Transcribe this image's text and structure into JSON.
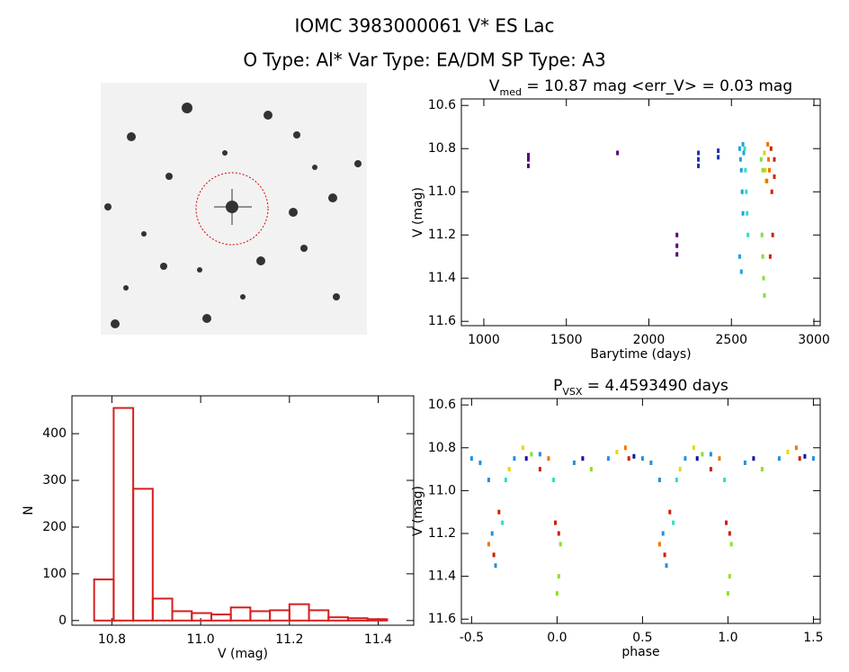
{
  "title": "IOMC 3983000061   V* ES Lac",
  "subtitle": "O Type: Al*  Var Type: EA/DM  SP Type: A3",
  "chart_data": [
    {
      "type": "scatter",
      "title": {
        "main": "V",
        "sub": "med",
        "rest": " = 10.87 mag <err_V> = 0.03 mag"
      },
      "x_label": "Barytime (days)",
      "y_label": "V (mag)",
      "xlim": [
        864,
        3038
      ],
      "ylim": [
        11.62,
        10.57
      ],
      "xticks": [
        1000,
        1500,
        2000,
        2500,
        3000
      ],
      "yticks": [
        10.6,
        10.8,
        {
          "value": 11,
          "label": "11.0"
        },
        11.2,
        11.4,
        11.6
      ],
      "series": [
        {
          "color": "#5a007a",
          "x": [
            1270,
            1270,
            1270,
            1810,
            2170,
            2170,
            2170
          ],
          "values": [
            10.83,
            10.85,
            10.88,
            10.82,
            11.2,
            11.25,
            11.29
          ]
        },
        {
          "color": "#2030b0",
          "x": [
            2300,
            2300,
            2300,
            2420,
            2420
          ],
          "values": [
            10.82,
            10.85,
            10.88,
            10.81,
            10.84
          ]
        },
        {
          "color": "#20a0e0",
          "x": [
            2550,
            2555,
            2560,
            2565,
            2570,
            2550,
            2560,
            2570,
            2575
          ],
          "values": [
            10.8,
            10.85,
            10.9,
            11.0,
            11.1,
            11.3,
            11.37,
            10.78,
            10.82
          ]
        },
        {
          "color": "#30e0c0",
          "x": [
            2580,
            2585,
            2590,
            2595,
            2600
          ],
          "values": [
            10.8,
            10.9,
            11.0,
            11.1,
            11.2
          ]
        },
        {
          "color": "#80e040",
          "x": [
            2680,
            2685,
            2690,
            2695,
            2700,
            2690
          ],
          "values": [
            10.85,
            11.2,
            11.3,
            11.4,
            11.48,
            10.9
          ]
        },
        {
          "color": "#e0d000",
          "x": [
            2700,
            2705,
            2710
          ],
          "values": [
            10.82,
            10.9,
            10.95
          ]
        },
        {
          "color": "#f07000",
          "x": [
            2720,
            2725,
            2730,
            2715
          ],
          "values": [
            10.78,
            10.85,
            10.9,
            10.95
          ]
        },
        {
          "color": "#d02000",
          "x": [
            2740,
            2745,
            2750,
            2735,
            2760,
            2760
          ],
          "values": [
            10.8,
            11.0,
            11.2,
            11.3,
            10.85,
            10.93
          ]
        }
      ]
    },
    {
      "type": "histogram",
      "x_label": "V (mag)",
      "y_label": "N",
      "xlim": [
        10.71,
        11.48
      ],
      "ylim": [
        -10,
        481
      ],
      "xticks": [
        10.8,
        {
          "value": 11,
          "label": "11.0"
        },
        11.2,
        11.4
      ],
      "yticks": [
        0,
        100,
        200,
        300,
        400
      ],
      "color": "#d62020",
      "bins": [
        10.76,
        10.804,
        10.848,
        10.892,
        10.936,
        10.98,
        11.024,
        11.068,
        11.112,
        11.156,
        11.2,
        11.244,
        11.288,
        11.332,
        11.376,
        11.42
      ],
      "values": [
        88,
        455,
        282,
        47,
        20,
        16,
        13,
        28,
        20,
        22,
        35,
        22,
        7,
        5,
        3
      ]
    },
    {
      "type": "scatter",
      "title": {
        "main": "P",
        "sub": "VSX",
        "rest": " = 4.4593490 days"
      },
      "x_label": "phase",
      "y_label": "V (mag)",
      "xlim": [
        -0.56,
        1.54
      ],
      "ylim": [
        11.62,
        10.57
      ],
      "xticks": [
        -0.5,
        {
          "value": 0,
          "label": "0.0"
        },
        0.5,
        {
          "value": 1,
          "label": "1.0"
        },
        1.5
      ],
      "yticks": [
        10.6,
        10.8,
        {
          "value": 11,
          "label": "11.0"
        },
        11.2,
        11.4,
        11.6
      ],
      "series": [
        {
          "color": "#2090e0",
          "x": [
            -0.5,
            -0.45,
            -0.4,
            -0.38,
            -0.36,
            -0.25,
            -0.1,
            0.1,
            0.3,
            0.5,
            0.55,
            0.6,
            0.62,
            0.64,
            0.75,
            0.9,
            1.1,
            1.3,
            1.5
          ],
          "values": [
            10.85,
            10.87,
            10.95,
            11.2,
            11.35,
            10.85,
            10.83,
            10.87,
            10.85,
            10.85,
            10.87,
            10.95,
            11.2,
            11.35,
            10.85,
            10.83,
            10.87,
            10.85,
            10.85
          ]
        },
        {
          "color": "#30e0c0",
          "x": [
            -0.32,
            -0.3,
            0.68,
            0.7,
            -0.02,
            0.98
          ],
          "values": [
            11.15,
            10.95,
            11.15,
            10.95,
            10.95,
            10.95
          ]
        },
        {
          "color": "#90e020",
          "x": [
            0,
            0.01,
            0.02,
            1.0,
            1.01,
            1.02,
            -0.15,
            0.2,
            0.85,
            1.2
          ],
          "values": [
            11.48,
            11.4,
            11.25,
            11.48,
            11.4,
            11.25,
            10.83,
            10.9,
            10.83,
            10.9
          ]
        },
        {
          "color": "#e8d800",
          "x": [
            -0.28,
            -0.2,
            0.35,
            0.72,
            0.8,
            1.35
          ],
          "values": [
            10.9,
            10.8,
            10.82,
            10.9,
            10.8,
            10.82
          ]
        },
        {
          "color": "#f07800",
          "x": [
            -0.4,
            0.6,
            -0.05,
            0.95,
            0.4,
            1.4
          ],
          "values": [
            11.25,
            11.25,
            10.85,
            10.85,
            10.8,
            10.8
          ]
        },
        {
          "color": "#d02000",
          "x": [
            -0.37,
            -0.34,
            0.63,
            0.66,
            -0.01,
            0.01,
            0.99,
            1.01,
            0.42,
            1.42,
            -0.1,
            0.9
          ],
          "values": [
            11.3,
            11.1,
            11.3,
            11.1,
            11.15,
            11.2,
            11.15,
            11.2,
            10.85,
            10.85,
            10.9,
            10.9
          ]
        },
        {
          "color": "#1010a0",
          "x": [
            -0.18,
            0.15,
            0.45,
            0.82,
            1.15,
            1.45
          ],
          "values": [
            10.85,
            10.85,
            10.84,
            10.85,
            10.85,
            10.84
          ]
        }
      ]
    }
  ]
}
